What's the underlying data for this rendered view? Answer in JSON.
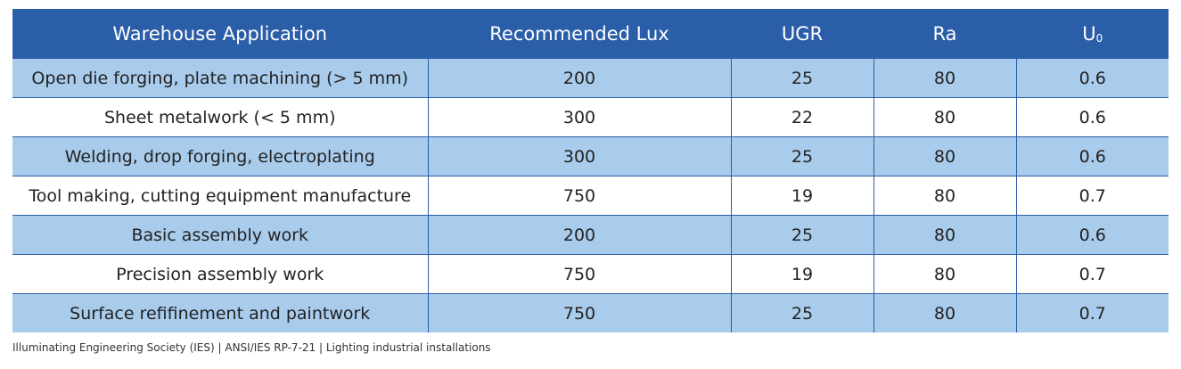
{
  "table": {
    "headers": [
      "Warehouse Application",
      "Recommended Lux",
      "UGR",
      "Ra",
      "U"
    ],
    "u0_subscript": "0",
    "rows": [
      [
        "Open die forging, plate machining (> 5 mm)",
        "200",
        "25",
        "80",
        "0.6"
      ],
      [
        "Sheet metalwork (< 5 mm)",
        "300",
        "22",
        "80",
        "0.6"
      ],
      [
        "Welding, drop forging, electroplating",
        "300",
        "25",
        "80",
        "0.6"
      ],
      [
        "Tool making, cutting equipment manufacture",
        "750",
        "19",
        "80",
        "0.7"
      ],
      [
        "Basic assembly work",
        "200",
        "25",
        "80",
        "0.6"
      ],
      [
        "Precision assembly work",
        "750",
        "19",
        "80",
        "0.7"
      ],
      [
        "Surface refifinement and paintwork",
        "750",
        "25",
        "80",
        "0.7"
      ]
    ]
  },
  "footnote": "Illuminating Engineering Society (IES) | ANSI/IES RP-7-21 | Lighting industrial installations",
  "colors": {
    "header_bg": "#2a5ea8",
    "shaded_row": "#a9ccec",
    "plain_row": "#ffffff"
  }
}
